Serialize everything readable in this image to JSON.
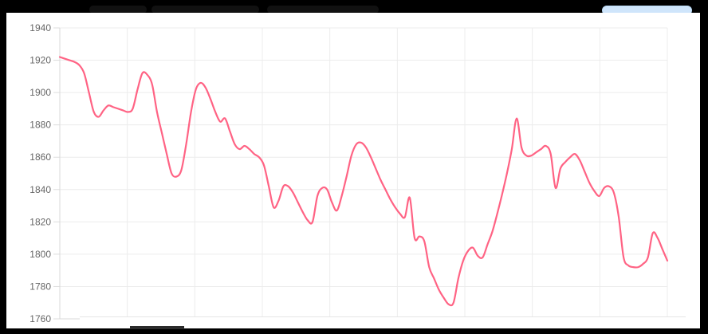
{
  "chart_data": {
    "type": "line",
    "title": "",
    "xlabel": "",
    "ylabel": "",
    "ylim": [
      1760,
      1940
    ],
    "yticks": [
      1760,
      1780,
      1800,
      1820,
      1840,
      1860,
      1880,
      1900,
      1920,
      1940
    ],
    "grid": true,
    "series": [
      {
        "color": "#ff6384",
        "values": [
          1922,
          1921,
          1920,
          1919,
          1917,
          1912,
          1900,
          1888,
          1885,
          1889,
          1892,
          1891,
          1890,
          1889,
          1888,
          1890,
          1902,
          1912,
          1911,
          1905,
          1888,
          1875,
          1862,
          1850,
          1848,
          1852,
          1868,
          1888,
          1902,
          1906,
          1903,
          1896,
          1888,
          1882,
          1884,
          1876,
          1868,
          1865,
          1867,
          1865,
          1862,
          1860,
          1855,
          1842,
          1829,
          1833,
          1842,
          1842,
          1838,
          1832,
          1826,
          1821,
          1820,
          1836,
          1841,
          1840,
          1832,
          1827,
          1836,
          1848,
          1861,
          1868,
          1869,
          1866,
          1860,
          1853,
          1846,
          1840,
          1834,
          1829,
          1825,
          1823,
          1835,
          1810,
          1811,
          1808,
          1792,
          1785,
          1778,
          1773,
          1769,
          1770,
          1785,
          1796,
          1802,
          1804,
          1799,
          1798,
          1806,
          1814,
          1825,
          1837,
          1850,
          1865,
          1884,
          1866,
          1861,
          1861,
          1863,
          1865,
          1867,
          1862,
          1841,
          1853,
          1857,
          1860,
          1862,
          1858,
          1851,
          1844,
          1839,
          1836,
          1841,
          1842,
          1838,
          1823,
          1798,
          1793,
          1792,
          1792,
          1794,
          1798,
          1813,
          1810,
          1803,
          1796
        ]
      }
    ]
  }
}
